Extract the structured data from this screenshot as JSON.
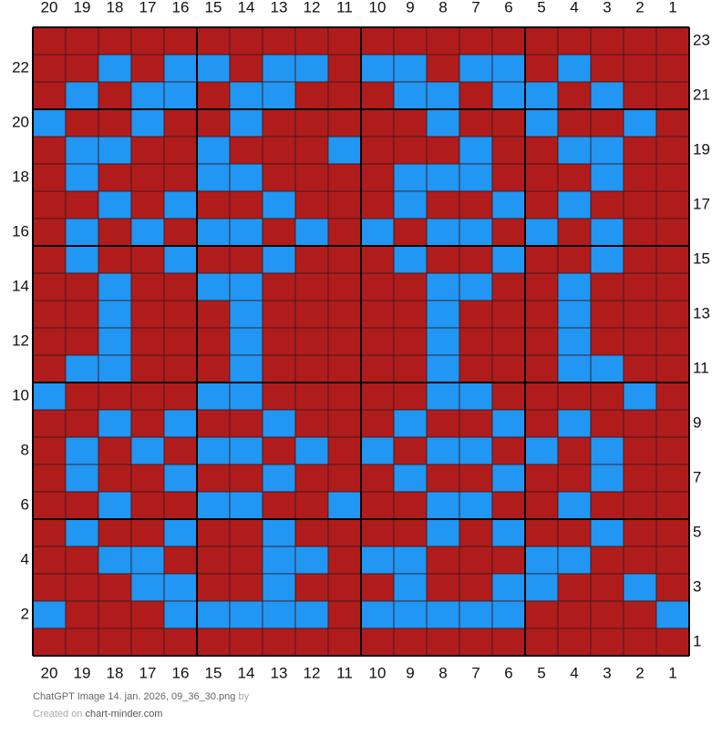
{
  "grid": {
    "columns": [
      20,
      19,
      18,
      17,
      16,
      15,
      14,
      13,
      12,
      11,
      10,
      9,
      8,
      7,
      6,
      5,
      4,
      3,
      2,
      1
    ],
    "left_row_labels": [
      22,
      20,
      18,
      16,
      14,
      12,
      10,
      8,
      6,
      4,
      2
    ],
    "right_row_labels": [
      23,
      21,
      19,
      17,
      15,
      13,
      11,
      9,
      7,
      5,
      3,
      1
    ],
    "colors": {
      "R": "#b01c1c",
      "B": "#2196f3"
    },
    "rows": [
      "RRRRRRRRRRRRRRRRRRRR",
      "RRBRBBRBBRBBRBBRBRRR",
      "RBRBBRBBRRRBBRBBRBRR",
      "BRRBRRBRRRRRBRRBRRBR",
      "RBBRRBRRRBRRRBRRBBRR",
      "RBRRRBBRRRRBBBRRRBRR",
      "RRBRBRRBRRRBRRBRBRRR",
      "RBRBRBBRBRBRBBRBRBRR",
      "RBRRBRRBRRRBRRBRRBRR",
      "RRBRRBBRRRRRBBRRBRRR",
      "RRBRRRBRRRRRBRRRBRRR",
      "RRBRRRBRRRRRBRRRBRRR",
      "RBBRRRBRRRRRBRRRBBRR",
      "BRRRRBBRRRRRBBRRRRBR",
      "RRBRBRRBRRRBRRBRBRRR",
      "RBRBRBBRBRBRBBRBRBRR",
      "RBRRBRRBRRRBRRBRRBRR",
      "RRBRRBBRRBRRBBRRBRRR",
      "RBRRBRRBRRRRBRBRRBRR",
      "RRBBRRRBBRBBRRRBBRRR",
      "RRRBBRRBRRRBRRBBRRBR",
      "BRRRBBBBBRBBBBBRRRRB",
      "RRRRRRRRRRRRRRRRRRRR"
    ]
  },
  "footer": {
    "file": "ChatGPT Image 14. jan. 2026, 09_36_30.png",
    "by": "by",
    "created": "Created on",
    "site": "chart-minder.com"
  }
}
